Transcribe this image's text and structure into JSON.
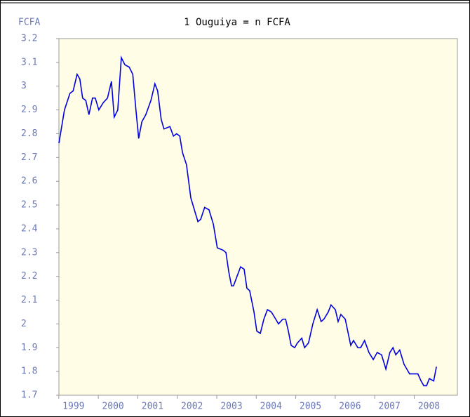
{
  "chart_data": {
    "type": "line",
    "title": "1 Ouguiya = n FCFA",
    "y_label": "FCFA",
    "ylim": [
      1.7,
      3.2
    ],
    "yticks": [
      1.7,
      1.8,
      1.9,
      2,
      2.1,
      2.2,
      2.3,
      2.4,
      2.5,
      2.6,
      2.7,
      2.8,
      2.9,
      3,
      3.1,
      3.2
    ],
    "xlim": [
      1998.63,
      2008.72
    ],
    "xticks": [
      1999,
      2000,
      2001,
      2002,
      2003,
      2004,
      2005,
      2006,
      2007,
      2008
    ],
    "series": [
      {
        "name": "Ouguiya/FCFA",
        "color": "#0000e0",
        "x": [
          1998.63,
          1998.77,
          1998.91,
          1998.99,
          1999.09,
          1999.16,
          1999.23,
          1999.31,
          1999.39,
          1999.48,
          1999.55,
          1999.64,
          1999.75,
          1999.86,
          1999.96,
          2000.03,
          2000.12,
          2000.21,
          2000.3,
          2000.41,
          2000.5,
          2000.58,
          2000.65,
          2000.73,
          2000.83,
          2000.96,
          2001.06,
          2001.13,
          2001.22,
          2001.29,
          2001.44,
          2001.53,
          2001.61,
          2001.69,
          2001.76,
          2001.86,
          2001.97,
          2002.15,
          2002.22,
          2002.32,
          2002.43,
          2002.54,
          2002.64,
          2002.79,
          2002.86,
          2002.93,
          2003.0,
          2003.05,
          2003.14,
          2003.23,
          2003.32,
          2003.39,
          2003.46,
          2003.57,
          2003.64,
          2003.73,
          2003.82,
          2003.91,
          2004.01,
          2004.12,
          2004.19,
          2004.3,
          2004.37,
          2004.44,
          2004.51,
          2004.6,
          2004.67,
          2004.78,
          2004.85,
          2004.95,
          2005.06,
          2005.17,
          2005.27,
          2005.34,
          2005.45,
          2005.52,
          2005.63,
          2005.7,
          2005.77,
          2005.88,
          2006.02,
          2006.09,
          2006.2,
          2006.27,
          2006.37,
          2006.48,
          2006.59,
          2006.69,
          2006.8,
          2006.91,
          2007.01,
          2007.09,
          2007.16,
          2007.26,
          2007.37,
          2007.51,
          2007.62,
          2007.72,
          2007.8,
          2007.87,
          2007.94,
          2008.01,
          2008.12,
          2008.19
        ],
        "values": [
          2.76,
          2.9,
          2.97,
          2.98,
          3.05,
          3.03,
          2.95,
          2.94,
          2.88,
          2.95,
          2.95,
          2.9,
          2.93,
          2.95,
          3.02,
          2.87,
          2.9,
          3.12,
          3.09,
          3.08,
          3.05,
          2.9,
          2.78,
          2.85,
          2.88,
          2.94,
          3.01,
          2.98,
          2.86,
          2.82,
          2.83,
          2.79,
          2.8,
          2.79,
          2.72,
          2.67,
          2.53,
          2.43,
          2.44,
          2.49,
          2.48,
          2.42,
          2.32,
          2.31,
          2.3,
          2.22,
          2.16,
          2.16,
          2.2,
          2.24,
          2.23,
          2.15,
          2.14,
          2.05,
          1.97,
          1.96,
          2.02,
          2.06,
          2.05,
          2.02,
          2.0,
          2.02,
          2.02,
          1.97,
          1.91,
          1.9,
          1.92,
          1.94,
          1.9,
          1.92,
          2.0,
          2.06,
          2.01,
          2.02,
          2.05,
          2.08,
          2.06,
          2.01,
          2.04,
          2.02,
          1.91,
          1.93,
          1.9,
          1.9,
          1.93,
          1.88,
          1.85,
          1.88,
          1.87,
          1.81,
          1.88,
          1.9,
          1.87,
          1.89,
          1.83,
          1.79,
          1.79,
          1.79,
          1.76,
          1.74,
          1.74,
          1.77,
          1.76,
          1.82
        ]
      }
    ]
  }
}
